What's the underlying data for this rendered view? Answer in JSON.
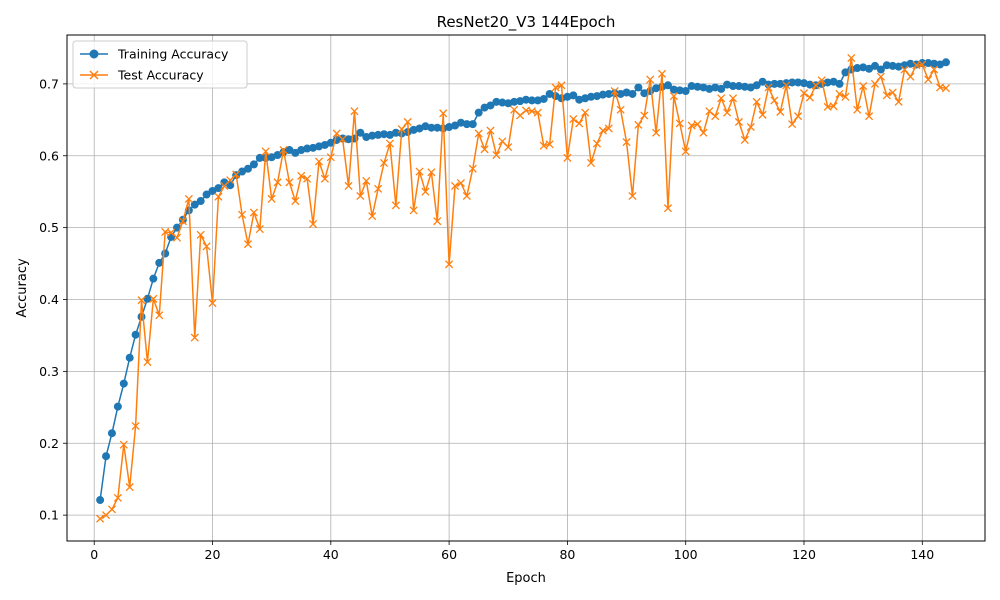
{
  "chart_data": {
    "type": "line",
    "title": "ResNet20_V3 144Epoch",
    "xlabel": "Epoch",
    "ylabel": "Accuracy",
    "xlim": [
      -4.6,
      150.6
    ],
    "ylim": [
      0.064,
      0.768
    ],
    "xticks": [
      0,
      20,
      40,
      60,
      80,
      100,
      120,
      140
    ],
    "yticks": [
      0.1,
      0.2,
      0.3,
      0.4,
      0.5,
      0.6,
      0.7
    ],
    "ytick_labels": [
      "0.1",
      "0.2",
      "0.3",
      "0.4",
      "0.5",
      "0.6",
      "0.7"
    ],
    "grid": true,
    "legend_position": "upper-left",
    "series": [
      {
        "name": "Training Accuracy",
        "color": "#1f77b4",
        "marker": "circle",
        "values": [
          0.121,
          0.182,
          0.214,
          0.251,
          0.283,
          0.319,
          0.351,
          0.376,
          0.401,
          0.429,
          0.451,
          0.464,
          0.487,
          0.5,
          0.511,
          0.524,
          0.532,
          0.537,
          0.546,
          0.551,
          0.555,
          0.563,
          0.559,
          0.573,
          0.578,
          0.582,
          0.588,
          0.597,
          0.597,
          0.598,
          0.601,
          0.605,
          0.608,
          0.604,
          0.608,
          0.61,
          0.611,
          0.613,
          0.615,
          0.618,
          0.622,
          0.624,
          0.623,
          0.624,
          0.632,
          0.626,
          0.628,
          0.629,
          0.63,
          0.629,
          0.632,
          0.631,
          0.633,
          0.636,
          0.638,
          0.641,
          0.639,
          0.639,
          0.638,
          0.64,
          0.642,
          0.646,
          0.644,
          0.644,
          0.66,
          0.667,
          0.67,
          0.675,
          0.674,
          0.673,
          0.675,
          0.676,
          0.678,
          0.677,
          0.677,
          0.679,
          0.686,
          0.683,
          0.68,
          0.682,
          0.684,
          0.678,
          0.68,
          0.682,
          0.683,
          0.685,
          0.686,
          0.687,
          0.686,
          0.688,
          0.686,
          0.695,
          0.687,
          0.69,
          0.694,
          0.696,
          0.698,
          0.692,
          0.691,
          0.69,
          0.697,
          0.696,
          0.695,
          0.693,
          0.695,
          0.693,
          0.699,
          0.697,
          0.697,
          0.696,
          0.695,
          0.698,
          0.703,
          0.699,
          0.7,
          0.7,
          0.701,
          0.702,
          0.702,
          0.701,
          0.699,
          0.698,
          0.7,
          0.702,
          0.703,
          0.7,
          0.716,
          0.72,
          0.722,
          0.723,
          0.721,
          0.725,
          0.72,
          0.726,
          0.725,
          0.724,
          0.726,
          0.728,
          0.727,
          0.729,
          0.729,
          0.728,
          0.727,
          0.73
        ]
      },
      {
        "name": "Test Accuracy",
        "color": "#ff7f0e",
        "marker": "x",
        "values": [
          0.095,
          0.1,
          0.108,
          0.124,
          0.198,
          0.139,
          0.224,
          0.399,
          0.313,
          0.401,
          0.378,
          0.494,
          0.493,
          0.486,
          0.509,
          0.54,
          0.347,
          0.49,
          0.474,
          0.395,
          0.543,
          0.558,
          0.566,
          0.574,
          0.518,
          0.477,
          0.521,
          0.498,
          0.606,
          0.54,
          0.563,
          0.608,
          0.563,
          0.537,
          0.572,
          0.568,
          0.505,
          0.592,
          0.568,
          0.598,
          0.631,
          0.623,
          0.558,
          0.662,
          0.544,
          0.565,
          0.516,
          0.554,
          0.59,
          0.617,
          0.531,
          0.637,
          0.647,
          0.524,
          0.578,
          0.55,
          0.577,
          0.509,
          0.659,
          0.449,
          0.558,
          0.562,
          0.544,
          0.582,
          0.631,
          0.609,
          0.635,
          0.601,
          0.62,
          0.612,
          0.664,
          0.656,
          0.663,
          0.662,
          0.66,
          0.614,
          0.616,
          0.695,
          0.698,
          0.597,
          0.651,
          0.645,
          0.66,
          0.59,
          0.617,
          0.635,
          0.638,
          0.69,
          0.664,
          0.619,
          0.544,
          0.643,
          0.656,
          0.706,
          0.632,
          0.714,
          0.527,
          0.683,
          0.645,
          0.606,
          0.642,
          0.644,
          0.632,
          0.662,
          0.655,
          0.68,
          0.66,
          0.68,
          0.647,
          0.622,
          0.64,
          0.675,
          0.657,
          0.695,
          0.677,
          0.661,
          0.698,
          0.644,
          0.655,
          0.687,
          0.681,
          0.698,
          0.705,
          0.668,
          0.669,
          0.686,
          0.682,
          0.736,
          0.664,
          0.697,
          0.655,
          0.7,
          0.71,
          0.684,
          0.688,
          0.675,
          0.72,
          0.71,
          0.726,
          0.727,
          0.706,
          0.72,
          0.695,
          0.694
        ]
      }
    ]
  }
}
